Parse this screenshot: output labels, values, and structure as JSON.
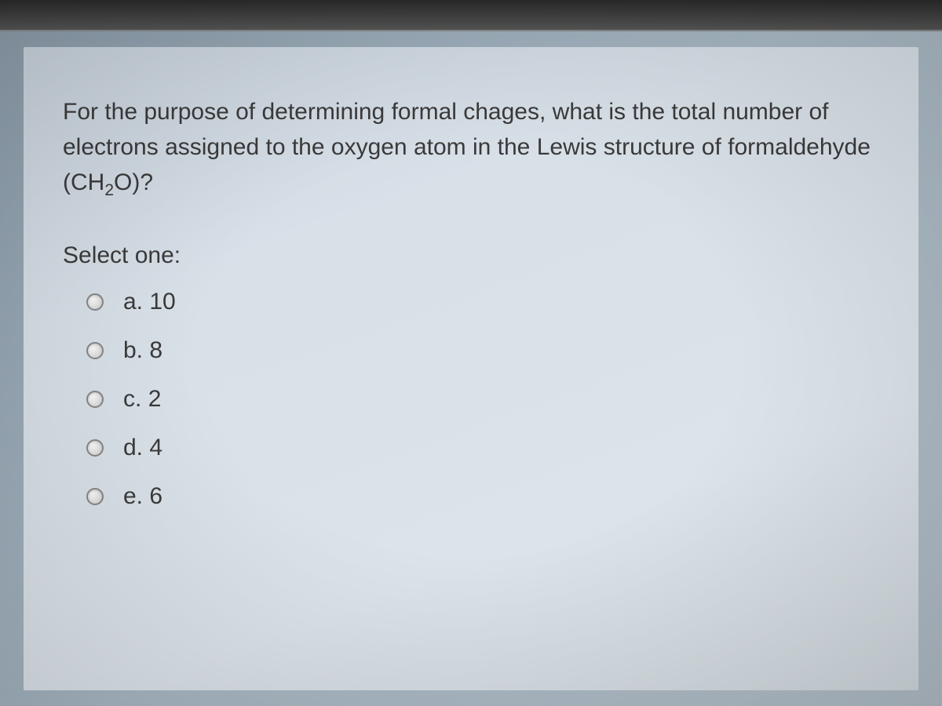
{
  "question": {
    "text_before_formula": "For the purpose of determining formal chages, what is the total number of electrons assigned to the oxygen atom in the Lewis structure of formaldehyde (CH",
    "subscript": "2",
    "text_after_formula": "O)?"
  },
  "select_label": "Select one:",
  "options": [
    {
      "letter": "a.",
      "value": "10"
    },
    {
      "letter": "b.",
      "value": "8"
    },
    {
      "letter": "c.",
      "value": "2"
    },
    {
      "letter": "d.",
      "value": "4"
    },
    {
      "letter": "e.",
      "value": "6"
    }
  ],
  "colors": {
    "text": "#3a3a3a",
    "panel_bg_start": "#c8d2dc",
    "panel_bg_end": "#d0d8de",
    "body_bg": "#a8b8c4",
    "radio_border": "#888888"
  },
  "typography": {
    "question_fontsize": 30,
    "option_fontsize": 30
  }
}
